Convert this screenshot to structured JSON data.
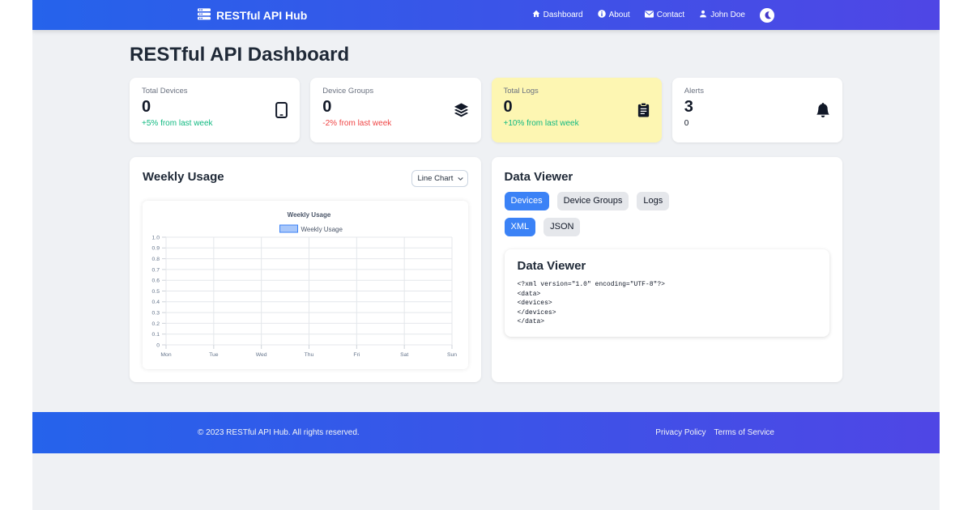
{
  "navbar": {
    "brand": "RESTful API Hub",
    "items": [
      {
        "label": "Dashboard",
        "icon": "home-icon"
      },
      {
        "label": "About",
        "icon": "info-icon"
      },
      {
        "label": "Contact",
        "icon": "envelope-icon"
      },
      {
        "label": "John Doe",
        "icon": "user-icon"
      }
    ],
    "theme_toggle_icon": "moon-icon"
  },
  "page_title": "RESTful API Dashboard",
  "stats": [
    {
      "label": "Total Devices",
      "value": "0",
      "delta": "+5% from last week",
      "delta_color": "#10b981",
      "icon": "phone-icon",
      "bg": "#ffffff"
    },
    {
      "label": "Device Groups",
      "value": "0",
      "delta": "-2% from last week",
      "delta_color": "#ef4444",
      "icon": "layers-icon",
      "bg": "#ffffff"
    },
    {
      "label": "Total Logs",
      "value": "0",
      "delta": "+10% from last week",
      "delta_color": "#10b981",
      "icon": "clipboard-icon",
      "bg": "#fdf6b2"
    },
    {
      "label": "Alerts",
      "value": "3",
      "delta": "0",
      "delta_color": "#111827",
      "icon": "bell-icon",
      "bg": "#ffffff"
    }
  ],
  "usage_panel": {
    "title": "Weekly Usage",
    "chart_type_selected": "Line Chart"
  },
  "chart_data": {
    "type": "line",
    "title": "Weekly Usage",
    "legend": [
      "Weekly Usage"
    ],
    "categories": [
      "Mon",
      "Tue",
      "Wed",
      "Thu",
      "Fri",
      "Sat",
      "Sun"
    ],
    "series": [
      {
        "name": "Weekly Usage",
        "values": [],
        "line_color": "#3b82f6",
        "fill_color": "#a8c7fa"
      }
    ],
    "ylim": [
      0,
      1
    ],
    "y_tick_step": 0.1,
    "grid": true,
    "legend_position": "top"
  },
  "data_viewer": {
    "title": "Data Viewer",
    "tabs": [
      "Devices",
      "Device Groups",
      "Logs"
    ],
    "active_tab": "Devices",
    "formats": [
      "XML",
      "JSON"
    ],
    "active_format": "XML",
    "card_title": "Data Viewer",
    "content": "<?xml version=\"1.0\" encoding=\"UTF-8\"?>\n<data>\n<devices>\n</devices>\n</data>"
  },
  "footer": {
    "copyright": "© 2023 RESTful API Hub. All rights reserved.",
    "links": [
      "Privacy Policy",
      "Terms of Service"
    ]
  },
  "colors": {
    "navbar_gradient_start": "#2563eb",
    "navbar_gradient_end": "#4f46e5",
    "accent": "#3b82f6",
    "highlight_card_bg": "#fdf6b2",
    "positive": "#10b981",
    "negative": "#ef4444",
    "page_bg": "#eff1f4"
  }
}
